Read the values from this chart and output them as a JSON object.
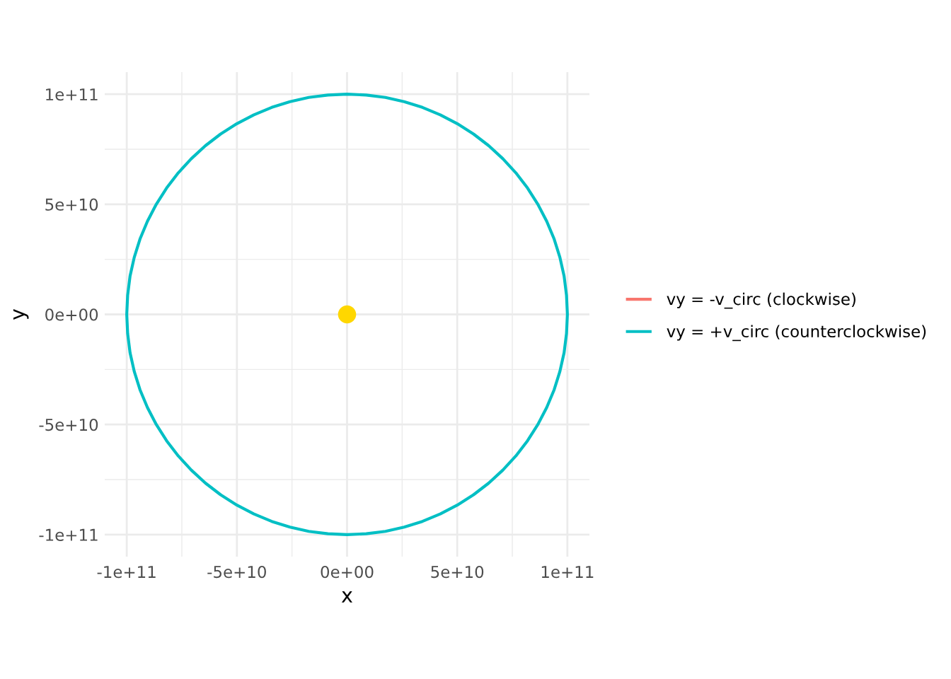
{
  "chart_data": {
    "type": "line",
    "xlabel": "x",
    "ylabel": "y",
    "x": [
      100000000000.0,
      99600000000.0,
      98500000000.0,
      96600000000.0,
      94000000000.0,
      90600000000.0,
      86600000000.0,
      81900000000.0,
      76600000000.0,
      70700000000.0,
      64300000000.0,
      57400000000.0,
      50000000000.0,
      42300000000.0,
      34200000000.0,
      25900000000.0,
      17400000000.0,
      8700000000.0,
      0,
      -8700000000.0,
      -17400000000.0,
      -25900000000.0,
      -34200000000.0,
      -42300000000.0,
      -50000000000.0,
      -57400000000.0,
      -64300000000.0,
      -70700000000.0,
      -76600000000.0,
      -81900000000.0,
      -86600000000.0,
      -90600000000.0,
      -94000000000.0,
      -96600000000.0,
      -98500000000.0,
      -99600000000.0,
      -100000000000.0,
      -99600000000.0,
      -98500000000.0,
      -96600000000.0,
      -94000000000.0,
      -90600000000.0,
      -86600000000.0,
      -81900000000.0,
      -76600000000.0,
      -70700000000.0,
      -64300000000.0,
      -57400000000.0,
      -50000000000.0,
      -42300000000.0,
      -34200000000.0,
      -25900000000.0,
      -17400000000.0,
      -8700000000.0,
      0,
      8700000000.0,
      17400000000.0,
      25900000000.0,
      34200000000.0,
      42300000000.0,
      50000000000.0,
      57400000000.0,
      64300000000.0,
      70700000000.0,
      76600000000.0,
      81900000000.0,
      86600000000.0,
      90600000000.0,
      94000000000.0,
      96600000000.0,
      98500000000.0,
      99600000000.0,
      100000000000.0,
      99600000000.0
    ],
    "series": [
      {
        "name": "vy = -v_circ (clockwise)",
        "color": "#f8766d",
        "values": [
          null,
          null,
          null,
          null,
          null,
          null,
          null,
          null,
          null,
          null,
          null,
          null,
          null,
          null,
          null,
          null,
          null,
          null,
          null,
          null,
          null,
          null,
          null,
          null,
          null,
          null,
          null,
          null,
          null,
          null,
          null,
          null,
          null,
          null,
          null,
          null,
          null,
          null,
          null,
          null,
          null,
          null,
          null,
          null,
          null,
          null,
          null,
          null,
          null,
          null,
          null,
          null,
          null,
          null,
          null,
          null,
          null,
          null,
          null,
          null,
          null,
          null,
          null,
          null,
          null,
          null,
          null,
          null,
          null,
          null,
          null,
          null,
          null,
          null
        ]
      },
      {
        "name": "vy = +v_circ (counterclockwise)",
        "color": "#00bfc4",
        "values": [
          0,
          8700000000.0,
          17400000000.0,
          25900000000.0,
          34200000000.0,
          42300000000.0,
          50000000000.0,
          57400000000.0,
          64300000000.0,
          70700000000.0,
          76600000000.0,
          81900000000.0,
          86600000000.0,
          90600000000.0,
          94000000000.0,
          96600000000.0,
          98500000000.0,
          99600000000.0,
          100000000000.0,
          99600000000.0,
          98500000000.0,
          96600000000.0,
          94000000000.0,
          90600000000.0,
          86600000000.0,
          81900000000.0,
          76600000000.0,
          70700000000.0,
          64300000000.0,
          57400000000.0,
          50000000000.0,
          42300000000.0,
          34200000000.0,
          25900000000.0,
          17400000000.0,
          8700000000.0,
          0,
          -8700000000.0,
          -17400000000.0,
          -25900000000.0,
          -34200000000.0,
          -42300000000.0,
          -50000000000.0,
          -57400000000.0,
          -64300000000.0,
          -70700000000.0,
          -76600000000.0,
          -81900000000.0,
          -86600000000.0,
          -90600000000.0,
          -94000000000.0,
          -96600000000.0,
          -98500000000.0,
          -99600000000.0,
          -100000000000.0,
          -99600000000.0,
          -98500000000.0,
          -96600000000.0,
          -94000000000.0,
          -90600000000.0,
          -86600000000.0,
          -81900000000.0,
          -76600000000.0,
          -70700000000.0,
          -64300000000.0,
          -57400000000.0,
          -50000000000.0,
          -42300000000.0,
          -34200000000.0,
          -25900000000.0,
          -17400000000.0,
          -8700000000.0,
          0,
          8700000000.0
        ]
      },
      {
        "type": "scatter",
        "color": "#ffd700",
        "marker": "circle",
        "x": [
          0
        ],
        "values": [
          0
        ]
      }
    ],
    "xlim": [
      -110000000000.0,
      110000000000.0
    ],
    "ylim": [
      -110000000000.0,
      110000000000.0
    ],
    "xticks": [
      {
        "value": -100000000000.0,
        "label": "-1e+11"
      },
      {
        "value": -75000000000.0,
        "label": null
      },
      {
        "value": -50000000000.0,
        "label": "-5e+10"
      },
      {
        "value": -25000000000.0,
        "label": null
      },
      {
        "value": 0,
        "label": "0e+00"
      },
      {
        "value": 25000000000.0,
        "label": null
      },
      {
        "value": 50000000000.0,
        "label": "5e+10"
      },
      {
        "value": 75000000000.0,
        "label": null
      },
      {
        "value": 100000000000.0,
        "label": "1e+11"
      }
    ],
    "yticks": [
      {
        "value": -100000000000.0,
        "label": "-1e+11"
      },
      {
        "value": -75000000000.0,
        "label": null
      },
      {
        "value": -50000000000.0,
        "label": "-5e+10"
      },
      {
        "value": -25000000000.0,
        "label": null
      },
      {
        "value": 0,
        "label": "0e+00"
      },
      {
        "value": 25000000000.0,
        "label": null
      },
      {
        "value": 50000000000.0,
        "label": "5e+10"
      },
      {
        "value": 75000000000.0,
        "label": null
      },
      {
        "value": 100000000000.0,
        "label": "1e+11"
      }
    ],
    "grid": true,
    "legend": "right"
  }
}
